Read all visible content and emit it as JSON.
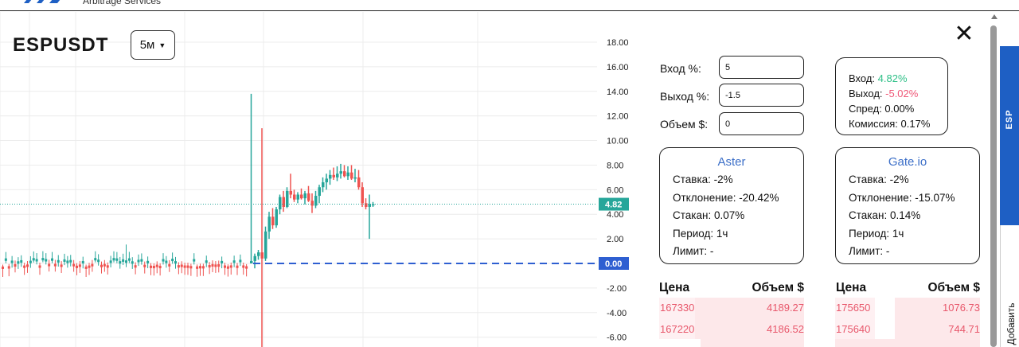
{
  "header": {
    "brand_sub": "Arbitrage Services"
  },
  "chart_header": {
    "symbol": "ESPUSDT",
    "timeframe": "5м"
  },
  "chart_data": {
    "type": "candlestick",
    "y_ticks": [
      "18.00",
      "16.00",
      "14.00",
      "12.00",
      "10.00",
      "8.00",
      "6.00",
      "4.00",
      "2.00",
      "0.00",
      "-2.00",
      "-4.00",
      "-6.00"
    ],
    "ylim": [
      -6.7,
      18.7
    ],
    "last_price": 4.82,
    "last_price_label": "4.82",
    "zero_label": "0.00",
    "colors": {
      "up": "#26a69a",
      "down": "#ef5350",
      "zero_line": "#2e5fd1",
      "price_badge": "#26a69a",
      "zero_badge": "#2e5fd1"
    },
    "candles_flat": {
      "count": 80,
      "range": [
        -0.6,
        0.6
      ]
    },
    "candles": [
      {
        "o": 0.0,
        "h": 13.8,
        "l": 0.0,
        "c": 0.2
      },
      {
        "o": 0.2,
        "h": 0.8,
        "l": -0.4,
        "c": 0.6
      },
      {
        "o": 0.6,
        "h": 1.1,
        "l": 0.3,
        "c": 0.9
      },
      {
        "o": 0.9,
        "h": 11.0,
        "l": -6.8,
        "c": 0.4
      },
      {
        "o": 0.4,
        "h": 3.0,
        "l": 0.2,
        "c": 2.6
      },
      {
        "o": 2.6,
        "h": 4.2,
        "l": 2.0,
        "c": 3.8
      },
      {
        "o": 3.8,
        "h": 4.5,
        "l": 2.8,
        "c": 3.1
      },
      {
        "o": 3.1,
        "h": 4.6,
        "l": 2.9,
        "c": 4.4
      },
      {
        "o": 4.4,
        "h": 5.6,
        "l": 4.0,
        "c": 5.4
      },
      {
        "o": 5.4,
        "h": 5.9,
        "l": 4.2,
        "c": 4.6
      },
      {
        "o": 4.6,
        "h": 6.2,
        "l": 4.5,
        "c": 5.9
      },
      {
        "o": 5.9,
        "h": 7.3,
        "l": 5.3,
        "c": 5.6
      },
      {
        "o": 5.6,
        "h": 6.0,
        "l": 5.0,
        "c": 5.2
      },
      {
        "o": 5.2,
        "h": 5.8,
        "l": 4.9,
        "c": 5.6
      },
      {
        "o": 5.6,
        "h": 6.1,
        "l": 5.2,
        "c": 5.3
      },
      {
        "o": 5.3,
        "h": 5.9,
        "l": 4.8,
        "c": 5.7
      },
      {
        "o": 5.7,
        "h": 6.3,
        "l": 5.0,
        "c": 5.1
      },
      {
        "o": 5.1,
        "h": 5.7,
        "l": 4.1,
        "c": 4.7
      },
      {
        "o": 4.7,
        "h": 5.9,
        "l": 4.5,
        "c": 5.5
      },
      {
        "o": 5.5,
        "h": 6.4,
        "l": 4.9,
        "c": 6.2
      },
      {
        "o": 6.2,
        "h": 7.0,
        "l": 5.8,
        "c": 6.6
      },
      {
        "o": 6.6,
        "h": 7.3,
        "l": 6.0,
        "c": 6.9
      },
      {
        "o": 6.9,
        "h": 7.6,
        "l": 6.4,
        "c": 7.2
      },
      {
        "o": 7.2,
        "h": 7.8,
        "l": 6.8,
        "c": 7.0
      },
      {
        "o": 7.0,
        "h": 7.9,
        "l": 6.7,
        "c": 7.3
      },
      {
        "o": 7.3,
        "h": 8.1,
        "l": 6.9,
        "c": 7.5
      },
      {
        "o": 7.5,
        "h": 8.0,
        "l": 7.0,
        "c": 7.1
      },
      {
        "o": 7.1,
        "h": 7.9,
        "l": 6.8,
        "c": 7.4
      },
      {
        "o": 7.4,
        "h": 8.0,
        "l": 6.8,
        "c": 6.9
      },
      {
        "o": 6.9,
        "h": 7.7,
        "l": 6.6,
        "c": 7.0
      },
      {
        "o": 7.0,
        "h": 7.6,
        "l": 6.0,
        "c": 6.2
      },
      {
        "o": 6.2,
        "h": 6.6,
        "l": 4.6,
        "c": 4.9
      },
      {
        "o": 4.9,
        "h": 5.3,
        "l": 4.4,
        "c": 4.6
      },
      {
        "o": 4.6,
        "h": 5.6,
        "l": 2.0,
        "c": 4.82
      },
      {
        "o": 4.82,
        "h": 5.0,
        "l": 4.6,
        "c": 4.82
      }
    ]
  },
  "params": {
    "entry_label": "Вход %:",
    "entry_value": "5",
    "exit_label": "Выход %:",
    "exit_value": "-1.5",
    "volume_label": "Объем $:",
    "volume_value": "0"
  },
  "summary": {
    "entry_label": "Вход:",
    "entry_value": "4.82%",
    "exit_label": "Выход:",
    "exit_value": "-5.02%",
    "spread": "Спред: 0.00%",
    "commission": "Комиссия: 0.17%"
  },
  "exchanges": [
    {
      "name": "Aster",
      "rate": "Ставка: -2%",
      "deviation": "Отклонение: -20.42%",
      "book": "Стакан: 0.07%",
      "period": "Период: 1ч",
      "limit": "Лимит: -"
    },
    {
      "name": "Gate.io",
      "rate": "Ставка: -2%",
      "deviation": "Отклонение: -15.07%",
      "book": "Стакан: 0.14%",
      "period": "Период: 1ч",
      "limit": "Лимит: -"
    }
  ],
  "orderbooks": [
    {
      "price_header": "Цена",
      "volume_header": "Объем $",
      "rows": [
        {
          "price": "167330",
          "volume": "4189.27",
          "fill": 1.0
        },
        {
          "price": "167220",
          "volume": "4186.52",
          "fill": 1.0
        }
      ]
    },
    {
      "price_header": "Цена",
      "volume_header": "Объем $",
      "rows": [
        {
          "price": "175650",
          "volume": "1076.73",
          "fill": 0.6
        },
        {
          "price": "175640",
          "volume": "744.71",
          "fill": 0.6
        }
      ]
    }
  ],
  "side_tabs": {
    "active": "ESP",
    "add": "Добавить"
  }
}
